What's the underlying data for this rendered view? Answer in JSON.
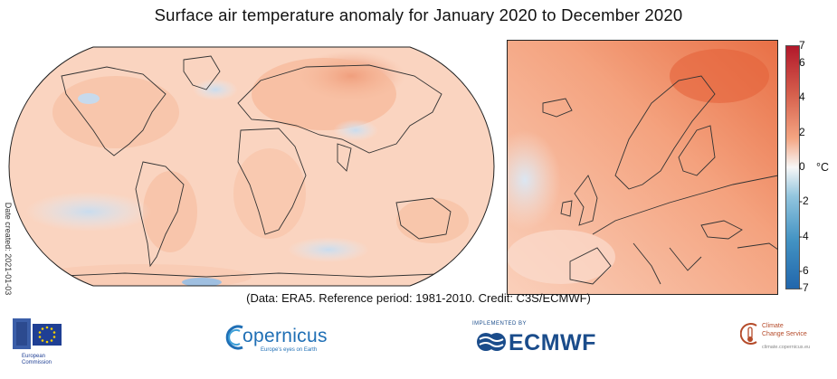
{
  "title": "Surface air temperature anomaly for January 2020 to December 2020",
  "date_created": "Date created: 2021-01-03",
  "credit": "(Data: ERA5.  Reference period: 1981-2010.  Credit: C3S/ECMWF)",
  "colorbar": {
    "unit": "°C",
    "ticks": [
      "7",
      "6",
      "4",
      "2",
      "0",
      "-2",
      "-4",
      "-6",
      "-7"
    ],
    "min": -7,
    "max": 7
  },
  "logos": {
    "ec_line1": "European",
    "ec_line2": "Commission",
    "copernicus": "opernicus",
    "copernicus_sub": "Europe's eyes on Earth",
    "ecmwf_top": "IMPLEMENTED BY",
    "ecmwf": "ECMWF",
    "c3s_line1": "Climate",
    "c3s_line2": "Change Service",
    "c3s_line3": "climate.copernicus.eu"
  },
  "colors": {
    "warm_dark": "#b2182b",
    "warm": "#ef8a62",
    "warm_light": "#fcd6c1",
    "neutral": "#f7f7f7",
    "cool_light": "#d1e5f0",
    "cool": "#67a9cf",
    "cool_dark": "#2166ac",
    "ecmwf_blue": "#1a4c8b",
    "copernicus_blue": "#1f6fb5"
  }
}
